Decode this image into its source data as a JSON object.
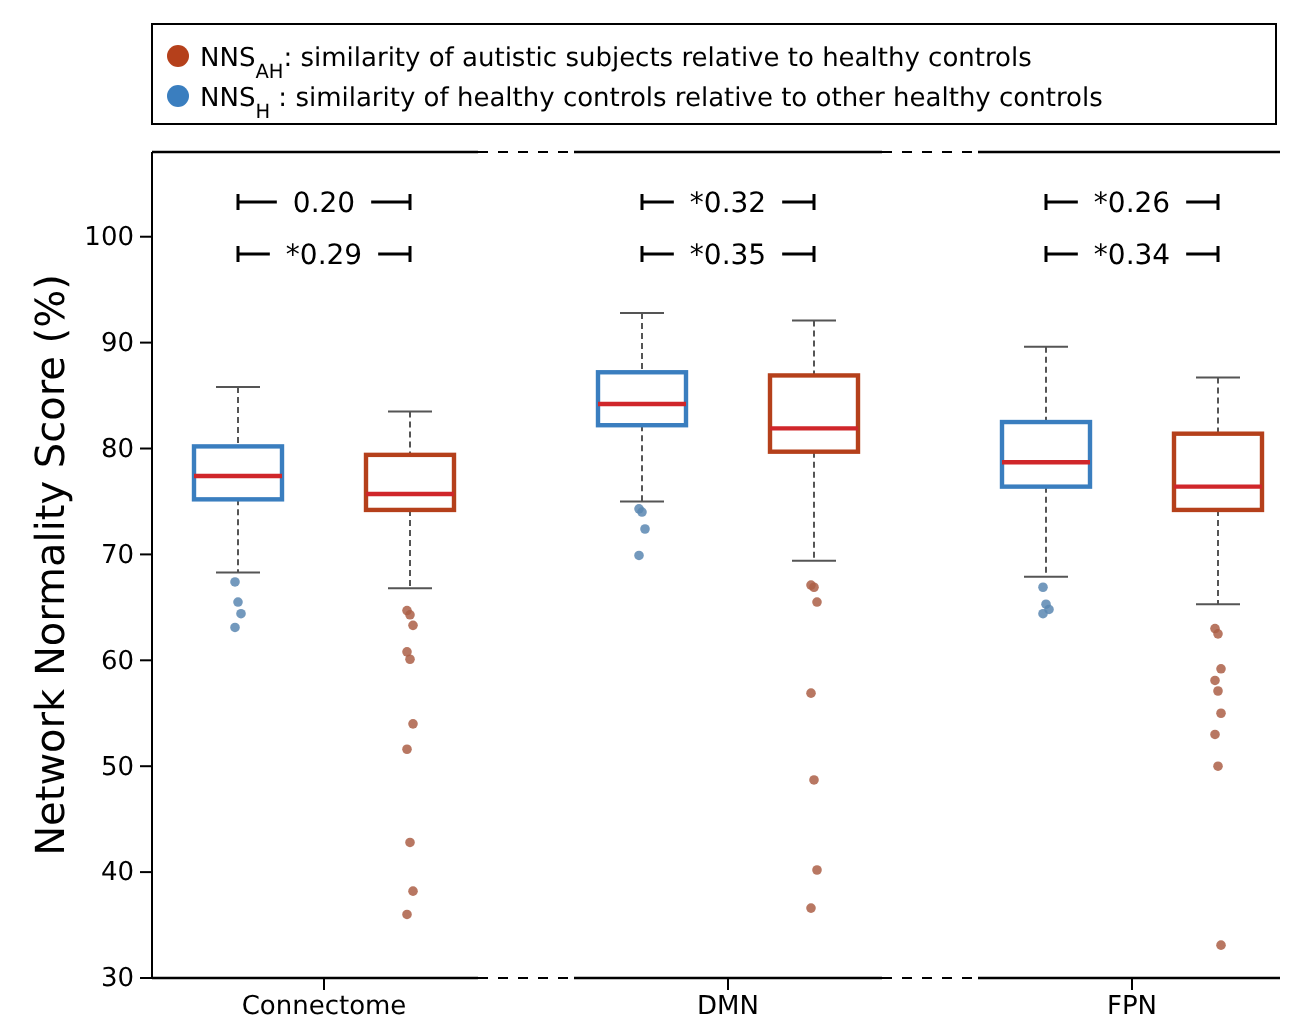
{
  "chart_data": {
    "type": "box",
    "ylabel": "Network Normality Score (%)",
    "categories": [
      "Connectome",
      "DMN",
      "FPN"
    ],
    "ylim": [
      30,
      108
    ],
    "yticks": [
      30,
      40,
      50,
      60,
      70,
      80,
      90,
      100
    ],
    "legend": "top",
    "annotations": [
      "0.20",
      "*0.29",
      "*0.32",
      "*0.35",
      "*0.26",
      "*0.34"
    ],
    "series": [
      {
        "name": "NNS$_{H}$ : similarity of healthy controls relative to other healthy controls",
        "color": "#3a7ebf",
        "boxes": [
          {
            "low": 68.3,
            "q1": 75.2,
            "median": 77.4,
            "q3": 80.2,
            "high": 85.8,
            "outliers": [
              67.4,
              65.5,
              64.4,
              63.1
            ]
          },
          {
            "low": 75.0,
            "q1": 82.2,
            "median": 84.2,
            "q3": 87.2,
            "high": 92.8,
            "outliers": [
              74.3,
              74.0,
              72.4,
              69.9
            ]
          },
          {
            "low": 67.9,
            "q1": 76.4,
            "median": 78.7,
            "q3": 82.5,
            "high": 89.6,
            "outliers": [
              66.9,
              65.3,
              64.8,
              64.4
            ]
          }
        ]
      },
      {
        "name": "NNS$_{AH}$: similarity of autistic subjects relative to healthy controls",
        "color": "#b5401b",
        "boxes": [
          {
            "low": 66.8,
            "q1": 74.2,
            "median": 75.7,
            "q3": 79.4,
            "high": 83.5,
            "outliers": [
              64.7,
              64.3,
              63.3,
              60.8,
              60.1,
              54.0,
              51.6,
              42.8,
              38.2,
              36.0
            ]
          },
          {
            "low": 69.4,
            "q1": 79.7,
            "median": 81.9,
            "q3": 86.9,
            "high": 92.1,
            "outliers": [
              67.1,
              66.9,
              65.5,
              56.9,
              48.7,
              40.2,
              36.6
            ]
          },
          {
            "low": 65.3,
            "q1": 74.2,
            "median": 76.4,
            "q3": 81.4,
            "high": 86.7,
            "outliers": [
              63.0,
              62.5,
              59.2,
              58.1,
              57.1,
              55.0,
              53.0,
              50.0,
              33.1
            ]
          }
        ]
      }
    ]
  }
}
